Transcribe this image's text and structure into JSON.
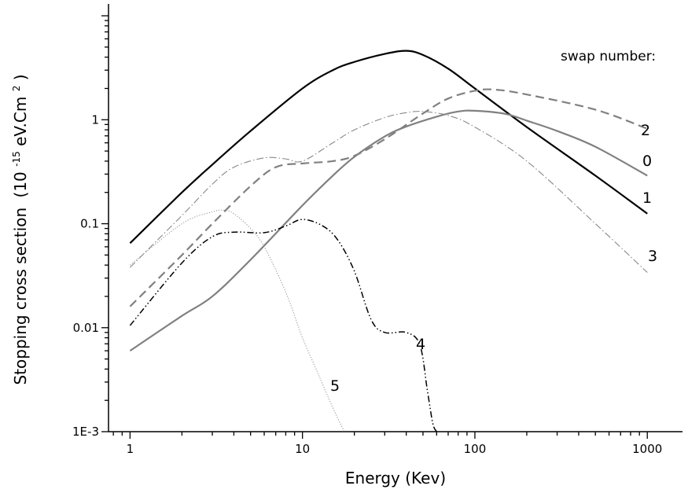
{
  "chart_data": {
    "type": "line",
    "xlabel": "Energy (Kev)",
    "ylabel_main": "Stopping cross section",
    "ylabel_unit_open": "(10",
    "ylabel_unit_exp1": "-15",
    "ylabel_unit_mid": "eV.Cm",
    "ylabel_unit_exp2": "2",
    "ylabel_unit_close": ")",
    "legend_title": "swap number:",
    "xscale": "log",
    "yscale": "log",
    "xlim": [
      0.75,
      1600
    ],
    "ylim": [
      0.001,
      13
    ],
    "x_ticks": [
      {
        "value": 1,
        "label": "1"
      },
      {
        "value": 10,
        "label": "10"
      },
      {
        "value": 100,
        "label": "100"
      },
      {
        "value": 1000,
        "label": "1000"
      }
    ],
    "y_ticks": [
      {
        "value": 0.001,
        "label": "1E-3"
      },
      {
        "value": 0.01,
        "label": "0.01"
      },
      {
        "value": 0.1,
        "label": "0.1"
      },
      {
        "value": 1,
        "label": "1"
      }
    ],
    "grid": false,
    "series": [
      {
        "name": "1",
        "color": "#000000",
        "style": "solid",
        "x": [
          1,
          2,
          3,
          5,
          10,
          15,
          20,
          30,
          40,
          50,
          70,
          100,
          200,
          500,
          1000
        ],
        "y": [
          0.065,
          0.2,
          0.37,
          0.78,
          2.0,
          3.0,
          3.6,
          4.3,
          4.6,
          4.2,
          3.1,
          2.0,
          0.85,
          0.29,
          0.125
        ]
      },
      {
        "name": "0",
        "color": "#808080",
        "style": "solid",
        "x": [
          1,
          2,
          3,
          5,
          10,
          15,
          20,
          30,
          40,
          60,
          80,
          100,
          150,
          200,
          300,
          500,
          1000
        ],
        "y": [
          0.006,
          0.013,
          0.02,
          0.045,
          0.15,
          0.29,
          0.44,
          0.69,
          0.86,
          1.07,
          1.2,
          1.22,
          1.14,
          0.98,
          0.78,
          0.55,
          0.29
        ]
      },
      {
        "name": "2",
        "color": "#808080",
        "style": "dashed",
        "x": [
          1,
          2,
          3,
          5,
          7,
          10,
          15,
          20,
          30,
          50,
          70,
          100,
          130,
          200,
          500,
          1000
        ],
        "y": [
          0.016,
          0.05,
          0.1,
          0.23,
          0.35,
          0.38,
          0.4,
          0.45,
          0.65,
          1.15,
          1.6,
          1.9,
          1.95,
          1.75,
          1.25,
          0.82
        ]
      },
      {
        "name": "3",
        "color": "#888888",
        "style": "dashdot",
        "x": [
          1,
          2,
          3,
          4,
          6,
          8,
          10,
          15,
          20,
          30,
          40,
          50,
          70,
          100,
          200,
          500,
          1000
        ],
        "y": [
          0.038,
          0.12,
          0.24,
          0.35,
          0.43,
          0.42,
          0.4,
          0.6,
          0.8,
          1.05,
          1.17,
          1.2,
          1.1,
          0.85,
          0.4,
          0.1,
          0.034
        ]
      },
      {
        "name": "4",
        "color": "#000000",
        "style": "dashdotdot",
        "x": [
          1,
          2,
          3,
          4,
          6,
          8,
          10,
          13,
          16,
          20,
          25,
          30,
          40,
          48,
          53,
          57,
          60
        ],
        "y": [
          0.0105,
          0.042,
          0.075,
          0.083,
          0.082,
          0.095,
          0.11,
          0.096,
          0.07,
          0.035,
          0.012,
          0.009,
          0.009,
          0.0068,
          0.0025,
          0.0012,
          0.001
        ]
      },
      {
        "name": "5",
        "color": "#999999",
        "style": "dotted",
        "x": [
          1,
          2,
          3,
          3.5,
          4,
          5,
          6,
          8,
          10,
          12,
          15,
          17.5
        ],
        "y": [
          0.04,
          0.1,
          0.13,
          0.135,
          0.125,
          0.09,
          0.06,
          0.022,
          0.008,
          0.004,
          0.0017,
          0.001
        ]
      }
    ]
  }
}
